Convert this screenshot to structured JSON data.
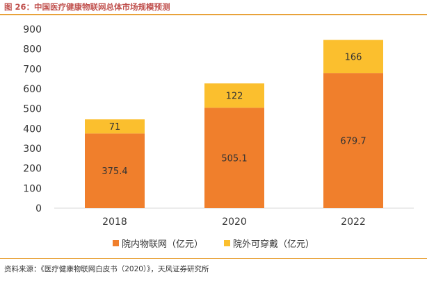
{
  "figure_title": "图 26：中国医疗健康物联网总体市场规模预测",
  "source_note": "资料来源：《医疗健康物联网白皮书（2020）》，天风证券研究所",
  "colors": {
    "accent": "#e8a23a",
    "title": "#c0504d",
    "series1": "#f07f2c",
    "series2": "#fbbf2e"
  },
  "chart_data": {
    "type": "bar",
    "stacked": true,
    "categories": [
      "2018",
      "2020",
      "2022"
    ],
    "series": [
      {
        "name": "院内物联网（亿元）",
        "values": [
          375.4,
          505.1,
          679.7
        ],
        "value_labels": [
          "375.4",
          "505.1",
          "679.7"
        ]
      },
      {
        "name": "院外可穿戴（亿元）",
        "values": [
          71,
          122,
          166
        ],
        "value_labels": [
          "71",
          "122",
          "166"
        ]
      }
    ],
    "y_ticks": [
      "0",
      "100",
      "200",
      "300",
      "400",
      "500",
      "600",
      "700",
      "800",
      "900"
    ],
    "ylim": [
      0,
      900
    ],
    "grid": false,
    "legend_position": "bottom"
  }
}
